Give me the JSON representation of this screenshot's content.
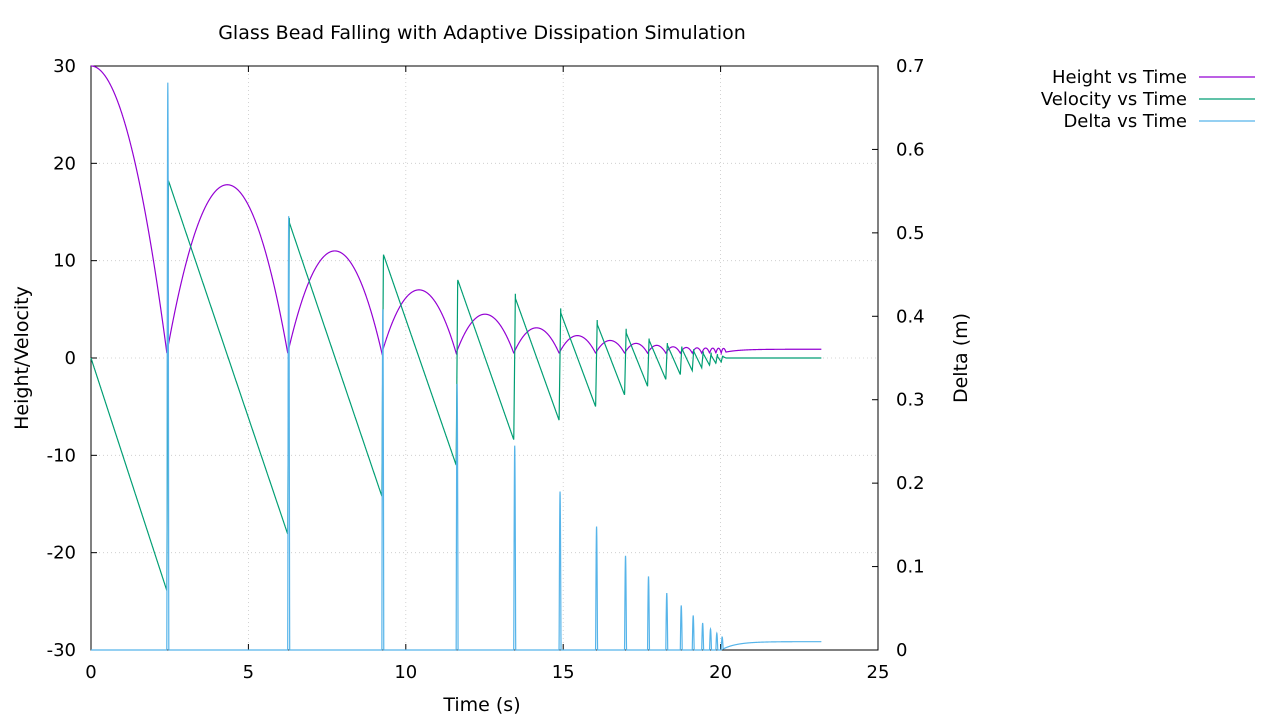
{
  "chart_data": {
    "type": "line",
    "title": "Glass Bead Falling with Adaptive Dissipation Simulation",
    "xlabel": "Time (s)",
    "ylabel": "Height/Velocity",
    "y2label": "Delta (m)",
    "xlim": [
      0,
      25
    ],
    "ylim": [
      -30,
      30
    ],
    "y2lim": [
      0,
      0.7
    ],
    "xticks": [
      "0",
      "5",
      "10",
      "15",
      "20",
      "25"
    ],
    "yticks": [
      "-30",
      "-20",
      "-10",
      "0",
      "10",
      "20",
      "30"
    ],
    "y2ticks": [
      "0",
      "0.1",
      "0.2",
      "0.3",
      "0.4",
      "0.5",
      "0.6",
      "0.7"
    ],
    "grid": true,
    "legend_position": "top-right outside",
    "bounces": [
      {
        "t": 2.41,
        "v_before": -23.9,
        "v_after": 18.7,
        "h_max_after": 17.8,
        "delta_peak": 0.68
      },
      {
        "t": 6.25,
        "v_before": -18.1,
        "v_after": 14.4,
        "h_max_after": 11.0,
        "delta_peak": 0.52
      },
      {
        "t": 9.24,
        "v_before": -14.2,
        "v_after": 11.1,
        "h_max_after": 7.0,
        "delta_peak": 0.41
      },
      {
        "t": 11.6,
        "v_before": -11.0,
        "v_after": 8.5,
        "h_max_after": 4.5,
        "delta_peak": 0.32
      },
      {
        "t": 13.43,
        "v_before": -8.4,
        "v_after": 6.6,
        "h_max_after": 3.1,
        "delta_peak": 0.245
      },
      {
        "t": 14.87,
        "v_before": -6.4,
        "v_after": 5.1,
        "h_max_after": 2.3,
        "delta_peak": 0.19
      },
      {
        "t": 16.03,
        "v_before": -5.0,
        "v_after": 3.9,
        "h_max_after": 1.8,
        "delta_peak": 0.148
      },
      {
        "t": 16.95,
        "v_before": -3.8,
        "v_after": 3.0,
        "h_max_after": 1.5,
        "delta_peak": 0.113
      },
      {
        "t": 17.68,
        "v_before": -2.9,
        "v_after": 2.2,
        "h_max_after": 1.3,
        "delta_peak": 0.088
      },
      {
        "t": 18.26,
        "v_before": -2.2,
        "v_after": 1.7,
        "h_max_after": 1.15,
        "delta_peak": 0.068
      },
      {
        "t": 18.72,
        "v_before": -1.7,
        "v_after": 1.3,
        "h_max_after": 1.08,
        "delta_peak": 0.053
      },
      {
        "t": 19.1,
        "v_before": -1.3,
        "v_after": 1.0,
        "h_max_after": 1.04,
        "delta_peak": 0.041
      },
      {
        "t": 19.4,
        "v_before": -1.0,
        "v_after": 0.75,
        "h_max_after": 1.02,
        "delta_peak": 0.032
      },
      {
        "t": 19.65,
        "v_before": -0.75,
        "v_after": 0.55,
        "h_max_after": 1.01,
        "delta_peak": 0.025
      },
      {
        "t": 19.85,
        "v_before": -0.55,
        "v_after": 0.4,
        "h_max_after": 1.0,
        "delta_peak": 0.02
      },
      {
        "t": 20.02,
        "v_before": -0.4,
        "v_after": 0.28,
        "h_max_after": 1.0,
        "delta_peak": 0.016
      }
    ],
    "series": [
      {
        "name": "Height vs Time",
        "axis": "y1",
        "color": "#9400d3",
        "initial_height": 30.0,
        "rest_height": 0.9,
        "contact_height": 0.5
      },
      {
        "name": "Velocity vs Time",
        "axis": "y1",
        "color": "#009e73",
        "initial_velocity": 0.0,
        "rest_velocity": 0.0
      },
      {
        "name": "Delta vs Time",
        "axis": "y2",
        "color": "#56b4e9",
        "rest_delta": 0.01
      }
    ],
    "t_end": 23.2
  }
}
